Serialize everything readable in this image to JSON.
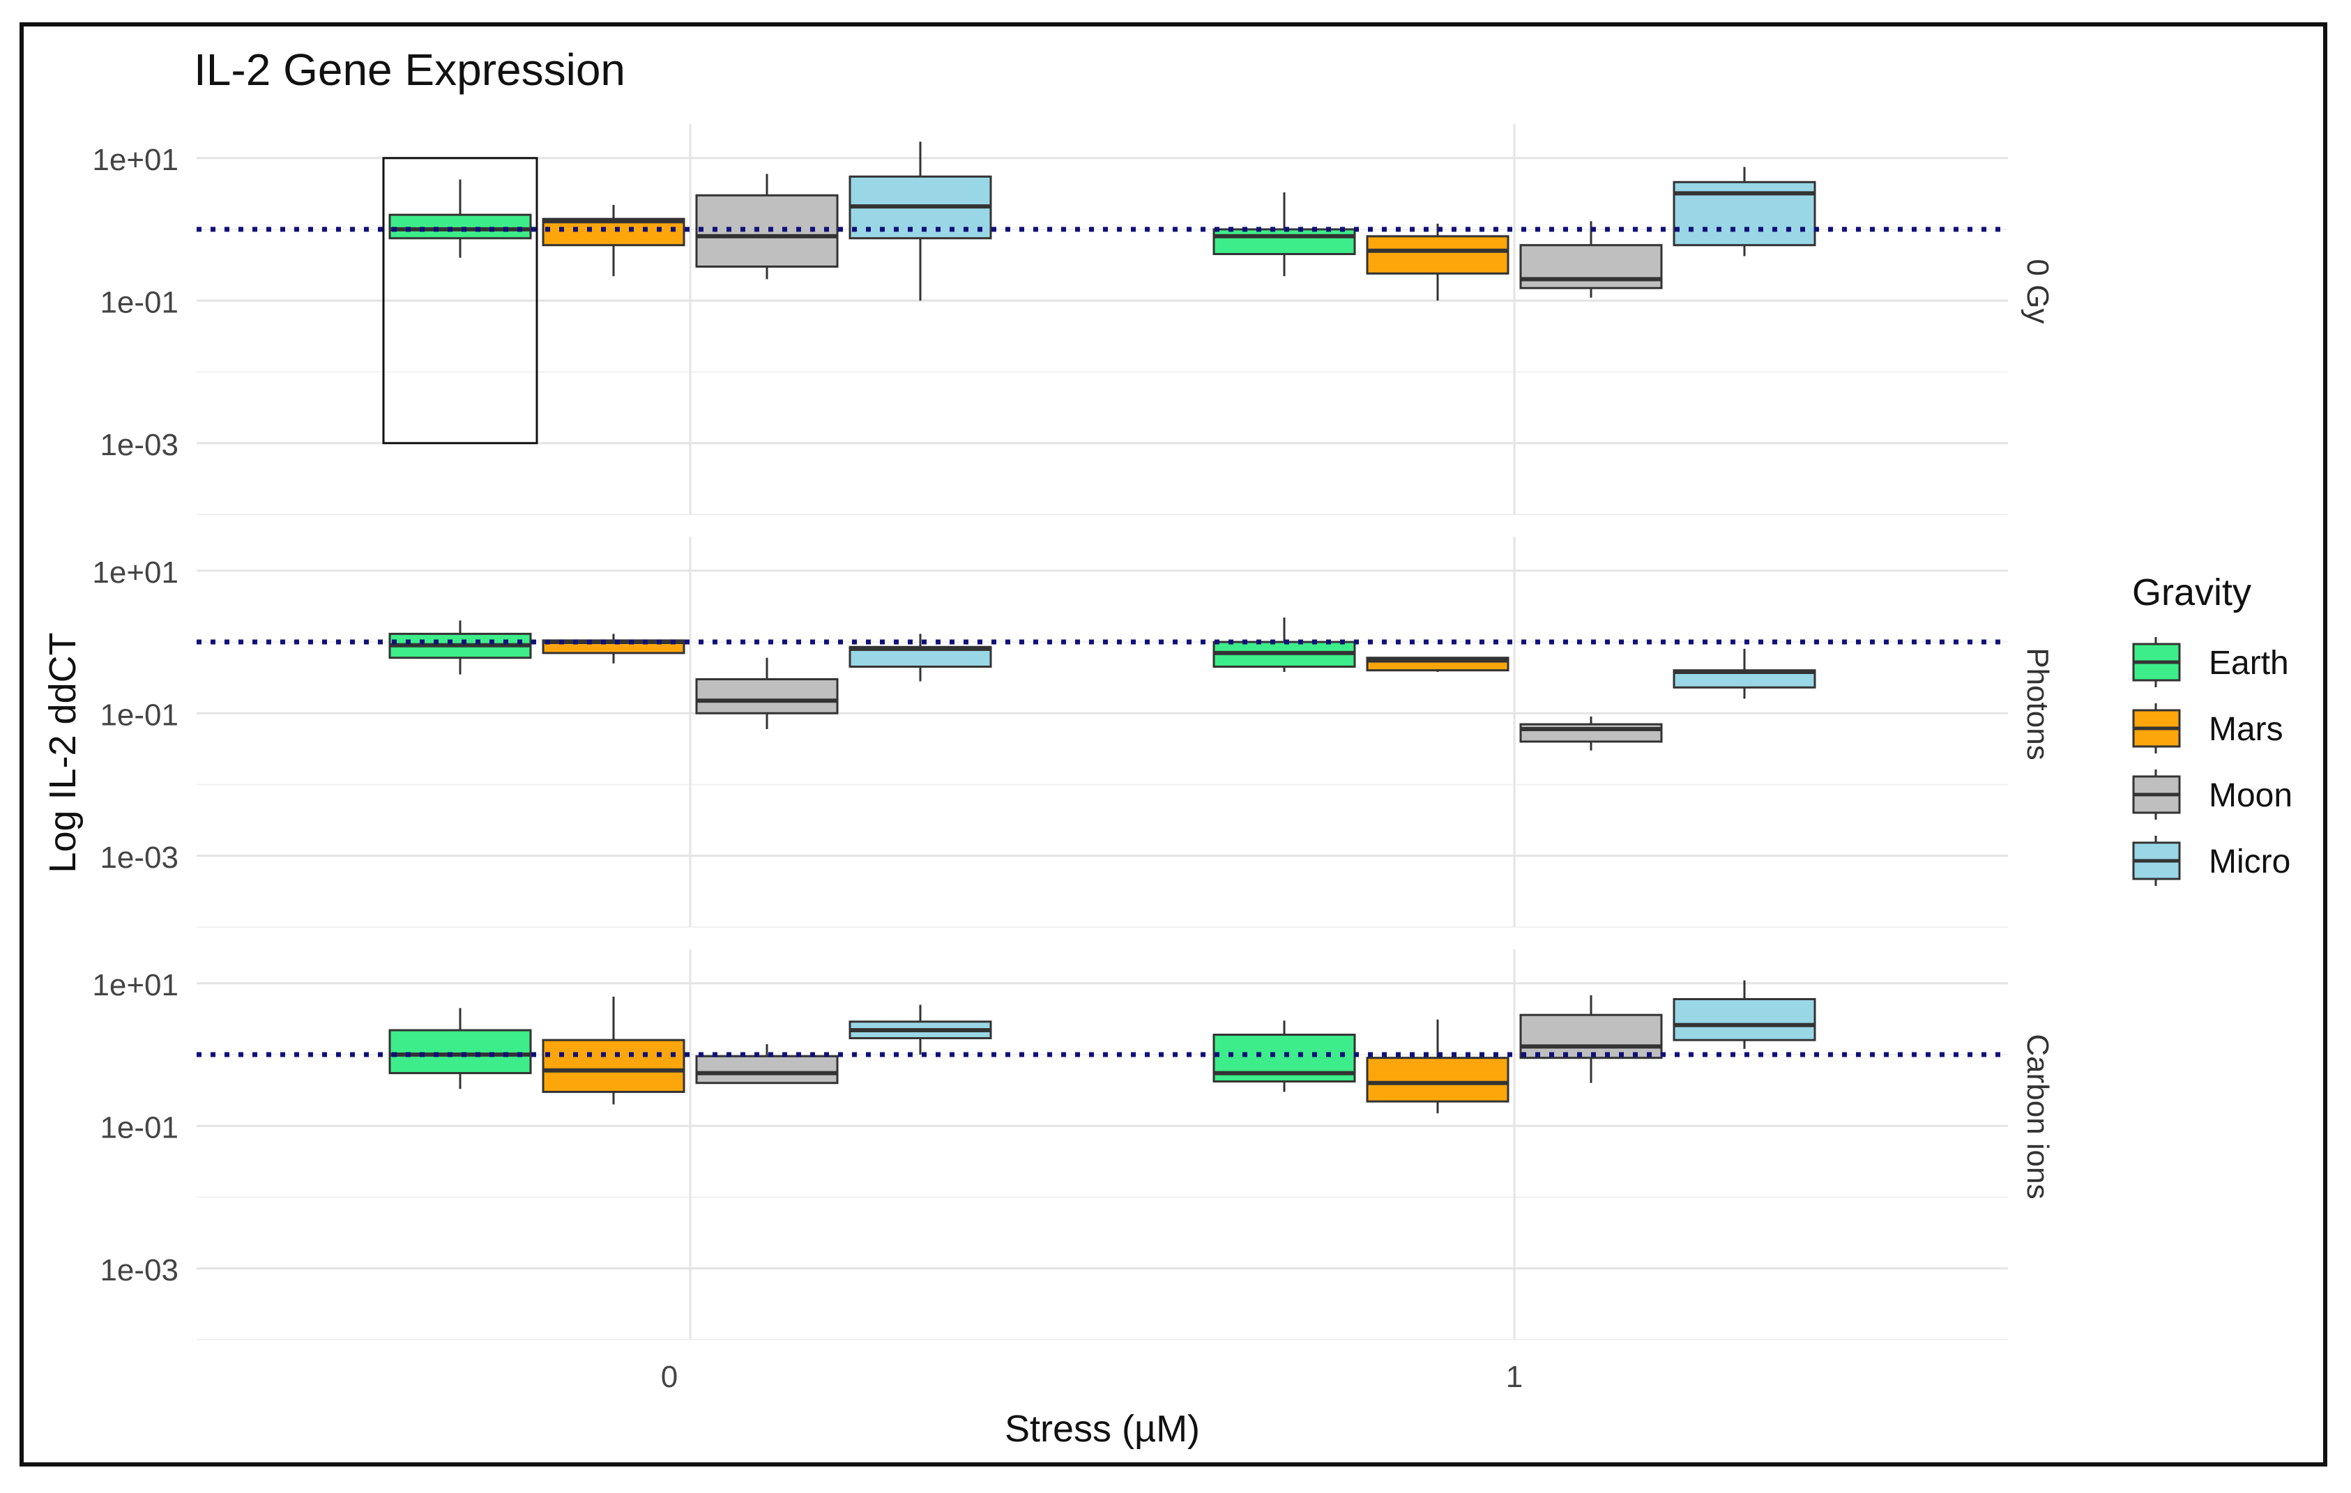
{
  "chart_data": {
    "type": "boxplot",
    "title": "IL-2 Gene Expression",
    "xlabel": "Stress (µM)",
    "ylabel": "Log IL-2 ddCT",
    "y_scale": "log10",
    "ylim": [
      0.0001,
      30
    ],
    "y_ticks": [
      10,
      0.1,
      0.001
    ],
    "y_tick_labels": [
      "1e+01",
      "1e-01",
      "1e-03"
    ],
    "reference_line": 1,
    "categories": [
      "0",
      "1"
    ],
    "legend": {
      "title": "Gravity",
      "position": "right",
      "entries": [
        {
          "name": "Earth",
          "color": "#3ded8a"
        },
        {
          "name": "Mars",
          "color": "#fca60b"
        },
        {
          "name": "Moon",
          "color": "#bfbfbf"
        },
        {
          "name": "Micro",
          "color": "#9ad7e6"
        }
      ]
    },
    "panels": [
      {
        "strip": "0 Gy",
        "highlight_box": {
          "group": "Earth",
          "category": "0",
          "ymin": 0.001,
          "ymax": 10
        },
        "boxes": [
          {
            "category": "0",
            "group": "Earth",
            "min": 0.4,
            "q1": 0.75,
            "median": 1.0,
            "q3": 1.6,
            "max": 5.0
          },
          {
            "category": "0",
            "group": "Mars",
            "min": 0.22,
            "q1": 0.6,
            "median": 1.3,
            "q3": 1.4,
            "max": 2.2
          },
          {
            "category": "0",
            "group": "Moon",
            "min": 0.2,
            "q1": 0.3,
            "median": 0.8,
            "q3": 3.0,
            "max": 6.0
          },
          {
            "category": "0",
            "group": "Micro",
            "min": 0.1,
            "q1": 0.75,
            "median": 2.1,
            "q3": 5.5,
            "max": 17.0
          },
          {
            "category": "1",
            "group": "Earth",
            "min": 0.22,
            "q1": 0.45,
            "median": 0.8,
            "q3": 1.0,
            "max": 3.3
          },
          {
            "category": "1",
            "group": "Mars",
            "min": 0.1,
            "q1": 0.24,
            "median": 0.5,
            "q3": 0.8,
            "max": 1.2
          },
          {
            "category": "1",
            "group": "Moon",
            "min": 0.11,
            "q1": 0.15,
            "median": 0.2,
            "q3": 0.6,
            "max": 1.3
          },
          {
            "category": "1",
            "group": "Micro",
            "min": 0.42,
            "q1": 0.6,
            "median": 3.2,
            "q3": 4.6,
            "max": 7.5
          }
        ]
      },
      {
        "strip": "Photons",
        "boxes": [
          {
            "category": "0",
            "group": "Earth",
            "min": 0.35,
            "q1": 0.6,
            "median": 0.9,
            "q3": 1.3,
            "max": 2.0
          },
          {
            "category": "0",
            "group": "Mars",
            "min": 0.5,
            "q1": 0.7,
            "median": 1.0,
            "q3": 1.05,
            "max": 1.3
          },
          {
            "category": "0",
            "group": "Moon",
            "min": 0.06,
            "q1": 0.1,
            "median": 0.15,
            "q3": 0.3,
            "max": 0.6
          },
          {
            "category": "0",
            "group": "Micro",
            "min": 0.28,
            "q1": 0.45,
            "median": 0.8,
            "q3": 0.85,
            "max": 1.3
          },
          {
            "category": "1",
            "group": "Earth",
            "min": 0.38,
            "q1": 0.45,
            "median": 0.7,
            "q3": 1.0,
            "max": 2.2
          },
          {
            "category": "1",
            "group": "Mars",
            "min": 0.38,
            "q1": 0.4,
            "median": 0.55,
            "q3": 0.6,
            "max": 0.6
          },
          {
            "category": "1",
            "group": "Moon",
            "min": 0.03,
            "q1": 0.04,
            "median": 0.06,
            "q3": 0.07,
            "max": 0.09
          },
          {
            "category": "1",
            "group": "Micro",
            "min": 0.16,
            "q1": 0.23,
            "median": 0.38,
            "q3": 0.4,
            "max": 0.8
          }
        ]
      },
      {
        "strip": "Carbon ions",
        "boxes": [
          {
            "category": "0",
            "group": "Earth",
            "min": 0.33,
            "q1": 0.55,
            "median": 1.0,
            "q3": 2.2,
            "max": 4.5
          },
          {
            "category": "0",
            "group": "Mars",
            "min": 0.2,
            "q1": 0.3,
            "median": 0.6,
            "q3": 1.6,
            "max": 6.5
          },
          {
            "category": "0",
            "group": "Moon",
            "min": 0.4,
            "q1": 0.4,
            "median": 0.55,
            "q3": 0.95,
            "max": 1.4
          },
          {
            "category": "0",
            "group": "Micro",
            "min": 1.0,
            "q1": 1.7,
            "median": 2.2,
            "q3": 2.9,
            "max": 5.0
          },
          {
            "category": "1",
            "group": "Earth",
            "min": 0.3,
            "q1": 0.42,
            "median": 0.55,
            "q3": 1.9,
            "max": 3.0
          },
          {
            "category": "1",
            "group": "Mars",
            "min": 0.15,
            "q1": 0.22,
            "median": 0.4,
            "q3": 0.9,
            "max": 3.1
          },
          {
            "category": "1",
            "group": "Moon",
            "min": 0.4,
            "q1": 0.9,
            "median": 1.3,
            "q3": 3.6,
            "max": 6.8
          },
          {
            "category": "1",
            "group": "Micro",
            "min": 1.2,
            "q1": 1.6,
            "median": 2.6,
            "q3": 6.0,
            "max": 11.0
          }
        ]
      }
    ]
  }
}
